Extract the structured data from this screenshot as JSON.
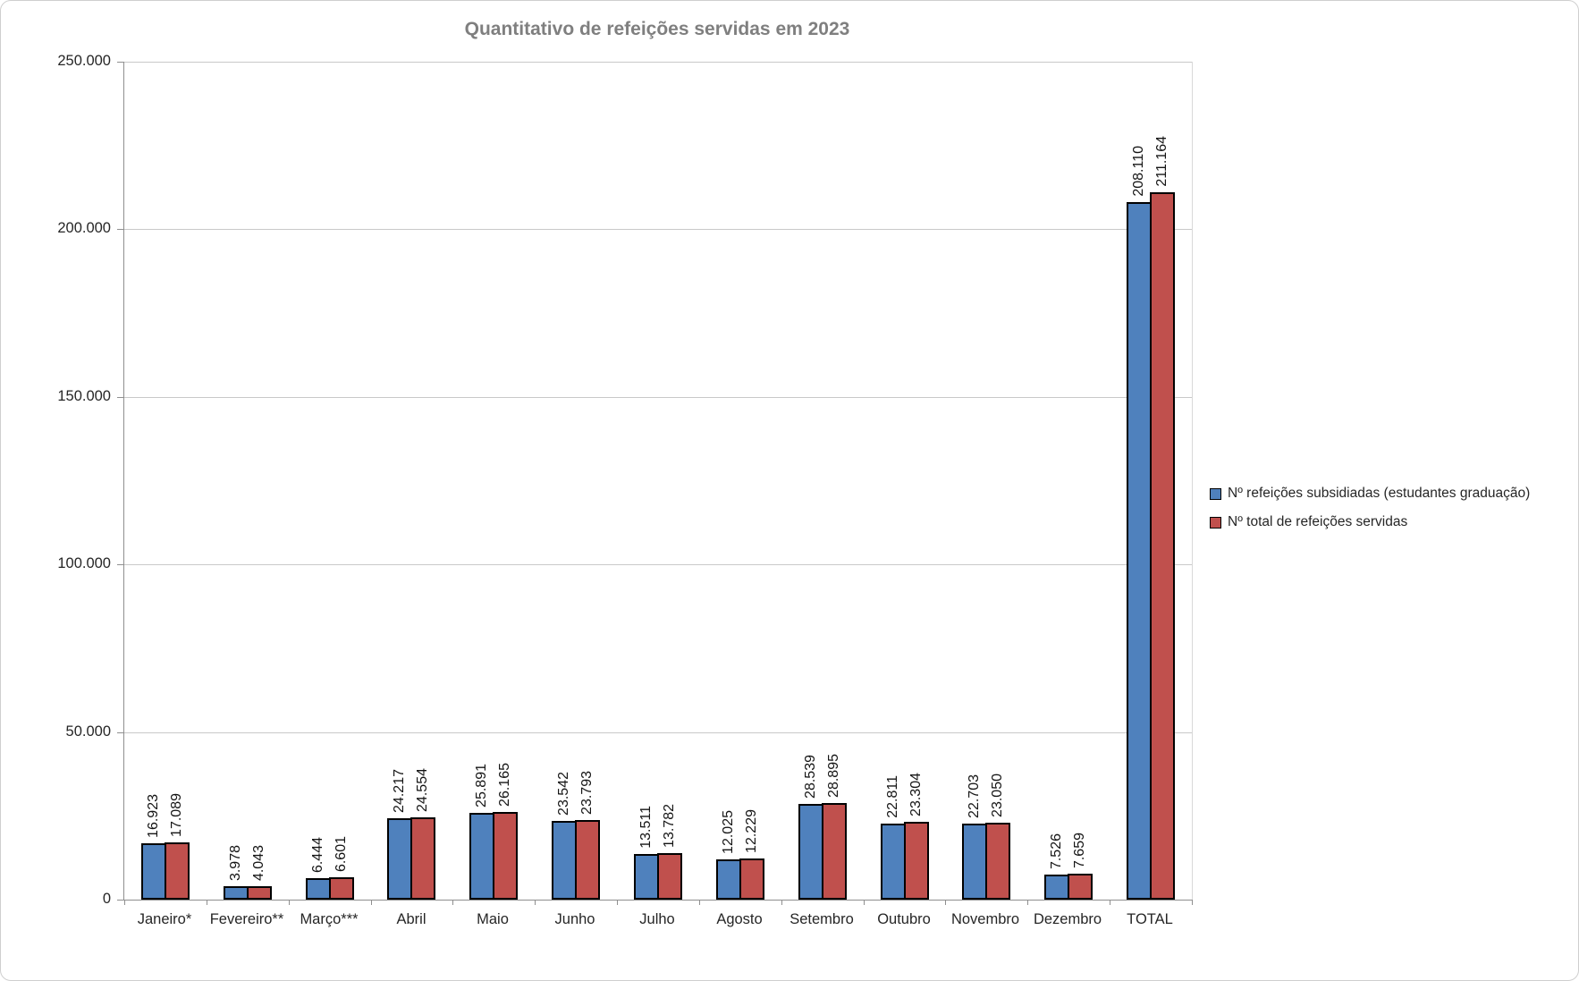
{
  "title": "Quantitativo de refeições servidas em 2023",
  "colors": {
    "series_blue": "#4F81BD",
    "series_red": "#C0504D",
    "bar_border": "#000000",
    "title_text": "#7f7f7f",
    "gridline": "#c9c9c9",
    "axis_line": "#8f8f8f"
  },
  "chart_data": {
    "type": "bar",
    "title": "Quantitativo de refeições servidas em 2023",
    "categories": [
      "Janeiro*",
      "Fevereiro**",
      "Março***",
      "Abril",
      "Maio",
      "Junho",
      "Julho",
      "Agosto",
      "Setembro",
      "Outubro",
      "Novembro",
      "Dezembro",
      "TOTAL"
    ],
    "series": [
      {
        "name": "Nº refeições subsidiadas (estudantes graduação)",
        "color": "#4F81BD",
        "values": [
          16923,
          3978,
          6444,
          24217,
          25891,
          23542,
          13511,
          12025,
          28539,
          22811,
          22703,
          7526,
          208110
        ]
      },
      {
        "name": "Nº total de refeições servidas",
        "color": "#C0504D",
        "values": [
          17089,
          4043,
          6601,
          24554,
          26165,
          23793,
          13782,
          12229,
          28895,
          23304,
          23050,
          7659,
          211164
        ]
      }
    ],
    "data_labels": [
      "16.923",
      "3.978",
      "6.444",
      "24.217",
      "25.891",
      "23.542",
      "13.511",
      "12.025",
      "28.539",
      "22.811",
      "22.703",
      "7.526",
      "208.110",
      "17.089",
      "4.043",
      "6.601",
      "24.554",
      "26.165",
      "23.793",
      "13.782",
      "12.229",
      "28.895",
      "23.304",
      "23.050",
      "7.659",
      "211.164"
    ],
    "data_label_rotation": 90,
    "xlabel": "",
    "ylabel": "",
    "y_axis": {
      "min": 0,
      "max": 250000,
      "step": 50000,
      "tick_labels": [
        "0",
        "50.000",
        "100.000",
        "150.000",
        "200.000",
        "250.000"
      ]
    },
    "grid": true,
    "legend_position": "right"
  }
}
